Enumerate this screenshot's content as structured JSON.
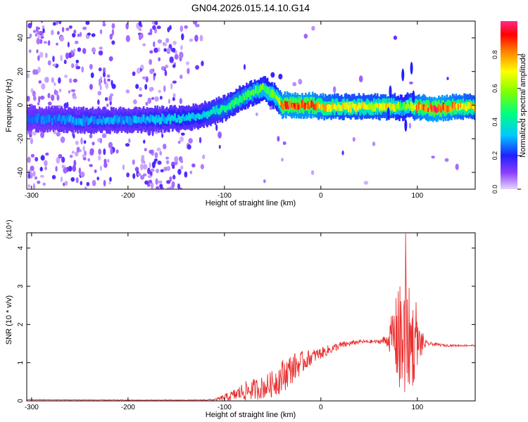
{
  "title": "GN04.2026.015.14.10.G14",
  "chart_data": [
    {
      "type": "heatmap",
      "xlabel": "Height of straight line (km)",
      "ylabel": "Frequency (Hz)",
      "xlim": [
        -305,
        160
      ],
      "ylim": [
        -50,
        50
      ],
      "xticks": [
        -300,
        -200,
        -100,
        0,
        100
      ],
      "yticks": [
        -40,
        -20,
        0,
        20,
        40
      ],
      "colorbar": {
        "label": "Normalized spectral amplitude",
        "range": [
          0,
          1
        ],
        "ticks": [
          "0.0",
          "0.2",
          "0.4",
          "0.6",
          "0.8"
        ],
        "ticks_value": [
          0.0,
          0.2,
          0.4,
          0.6,
          0.8
        ],
        "colormap": "rainbow"
      },
      "ridge": {
        "x": [
          -300,
          -250,
          -200,
          -150,
          -130,
          -100,
          -80,
          -60,
          -45,
          -40,
          -20,
          -10,
          0,
          20,
          40,
          60,
          70,
          80,
          85,
          90,
          95,
          100,
          120,
          140,
          160
        ],
        "freq": [
          -8,
          -9,
          -9,
          -8,
          -7,
          -2,
          5,
          10,
          4,
          0,
          0,
          0,
          -1,
          -1,
          -1,
          -1,
          -1,
          -1,
          -2,
          0,
          -1,
          -1,
          -2,
          -1,
          -1
        ],
        "amplitude": [
          0.25,
          0.3,
          0.3,
          0.35,
          0.35,
          0.45,
          0.5,
          0.55,
          0.6,
          0.9,
          0.9,
          0.9,
          0.8,
          0.7,
          0.7,
          0.7,
          0.75,
          0.6,
          0.5,
          0.6,
          0.7,
          0.8,
          0.95,
          0.8,
          0.7
        ]
      }
    },
    {
      "type": "line",
      "xlabel": "Height of straight line (km)",
      "ylabel": "SNR (10 * v/v)",
      "yscale_label": "(x10⁴)",
      "xlim": [
        -305,
        160
      ],
      "ylim": [
        0,
        4.4
      ],
      "xticks": [
        -300,
        -200,
        -100,
        0,
        100
      ],
      "yticks": [
        0,
        1,
        2,
        3,
        4
      ],
      "series": [
        {
          "color": "#e83030",
          "envelope": {
            "x": [
              -305,
              -200,
              -130,
              -110,
              -100,
              -90,
              -80,
              -60,
              -50,
              -40,
              -30,
              -20,
              -10,
              0,
              20,
              40,
              60,
              70,
              75,
              80,
              85,
              90,
              95,
              100,
              110,
              130,
              160
            ],
            "mean": [
              0.03,
              0.02,
              0.02,
              0.03,
              0.08,
              0.15,
              0.25,
              0.35,
              0.45,
              0.65,
              0.85,
              1.0,
              1.15,
              1.25,
              1.45,
              1.55,
              1.55,
              1.6,
              1.7,
              1.6,
              1.5,
              1.7,
              1.5,
              1.5,
              1.5,
              1.45,
              1.45
            ],
            "noise": [
              0.01,
              0.01,
              0.01,
              0.02,
              0.1,
              0.15,
              0.25,
              0.3,
              0.35,
              0.45,
              0.4,
              0.3,
              0.2,
              0.15,
              0.1,
              0.05,
              0.05,
              0.2,
              0.8,
              1.3,
              1.8,
              1.4,
              1.2,
              0.6,
              0.05,
              0.03,
              0.02
            ]
          }
        }
      ]
    }
  ]
}
